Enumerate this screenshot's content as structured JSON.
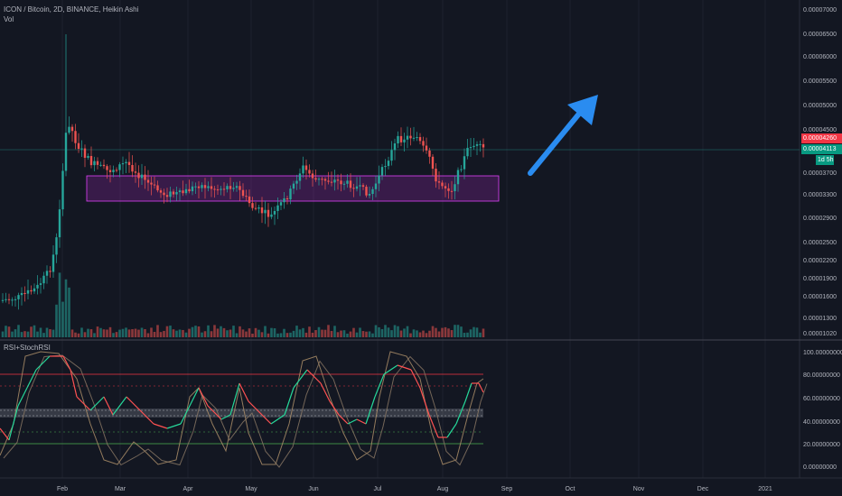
{
  "header": {
    "symbol_title": "ICON / Bitcoin, 2D, BINANCE, Heikin Ashi",
    "volume_label": "Vol"
  },
  "indicator": {
    "title": "RSI+StochRSI"
  },
  "price_axis": {
    "labels": [
      "0.00007000",
      "0.00006500",
      "0.00006000",
      "0.00005500",
      "0.00005000",
      "0.00004500",
      "0.00004100",
      "0.00003700",
      "0.00003300",
      "0.00002900",
      "0.00002500",
      "0.00002200",
      "0.00001900",
      "0.00001600",
      "0.00001300",
      "0.00001020"
    ],
    "tag_red": "0.00004260",
    "tag_teal": "0.00004113",
    "tag_teal_sub": "1d 5h",
    "colors": {
      "red": "#f23645",
      "teal": "#089981"
    }
  },
  "indicator_axis": {
    "labels": [
      "100.00000000",
      "80.00000000",
      "60.00000000",
      "40.00000000",
      "20.00000000",
      "0.00000000"
    ]
  },
  "time_axis": {
    "labels": [
      "Feb",
      "Mar",
      "Apr",
      "May",
      "Jun",
      "Jul",
      "Aug",
      "Sep",
      "Oct",
      "Nov",
      "Dec",
      "2021"
    ]
  },
  "colors": {
    "up": "#26a69a",
    "down": "#ef5350",
    "box": "#9c27b0",
    "arrow": "#2a8cf0",
    "rsi_up": "#26d89a",
    "rsi_down": "#ff5252",
    "stoch": "#b4956d"
  },
  "icons": [
    "arrow-up-right-icon"
  ]
}
